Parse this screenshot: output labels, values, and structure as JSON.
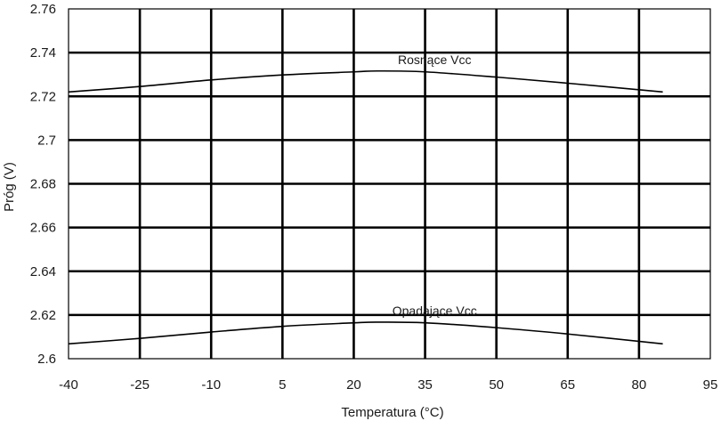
{
  "chart_data": {
    "type": "line",
    "title": "",
    "xlabel": "Temperatura (°C)",
    "ylabel": "Próg (V)",
    "xlim": [
      -40,
      95
    ],
    "ylim": [
      2.6,
      2.76
    ],
    "grid": true,
    "x_ticks": [
      "-40",
      "-25",
      "-10",
      "5",
      "20",
      "35",
      "50",
      "65",
      "80",
      "95"
    ],
    "y_ticks": [
      "2.6",
      "2.62",
      "2.64",
      "2.66",
      "2.68",
      "2.7",
      "2.72",
      "2.74",
      "2.76"
    ],
    "series": [
      {
        "name": "Rosnące Vcc",
        "color": "#000000",
        "x": [
          -40,
          -25,
          -10,
          5,
          20,
          25,
          35,
          50,
          65,
          85
        ],
        "y": [
          2.722,
          2.7245,
          2.7275,
          2.7298,
          2.7312,
          2.7316,
          2.7312,
          2.7288,
          2.726,
          2.722
        ]
      },
      {
        "name": "Opadające Vcc",
        "color": "#000000",
        "x": [
          -40,
          -25,
          -10,
          5,
          20,
          25,
          35,
          50,
          65,
          85
        ],
        "y": [
          2.6068,
          2.6093,
          2.6122,
          2.6148,
          2.6164,
          2.6167,
          2.6164,
          2.6142,
          2.6113,
          2.6068
        ]
      }
    ]
  }
}
